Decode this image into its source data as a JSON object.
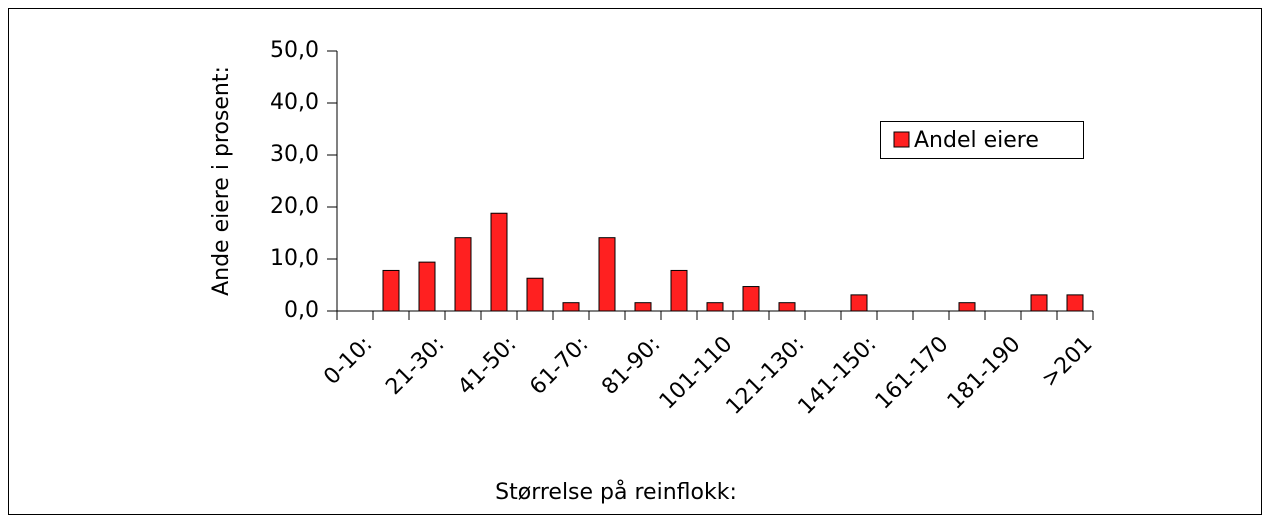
{
  "chart_data": {
    "type": "bar",
    "xlabel": "Størrelse på reinflokk:",
    "ylabel": "Ande eiere i prosent:",
    "categories": [
      "0-10:",
      null,
      "21-30:",
      null,
      "41-50:",
      null,
      "61-70:",
      null,
      "81-90:",
      null,
      "101-110",
      null,
      "121-130:",
      null,
      "141-150:",
      null,
      "161-170",
      null,
      "181-190",
      null,
      ">201"
    ],
    "series": [
      {
        "name": "Andel eiere",
        "color": "#ff2020",
        "values": [
          0,
          7.8,
          9.4,
          14.1,
          18.8,
          6.3,
          1.6,
          14.1,
          1.6,
          7.8,
          1.6,
          4.7,
          1.6,
          0,
          3.1,
          0,
          0,
          1.6,
          0,
          3.1,
          3.1
        ]
      }
    ],
    "ylim": [
      0,
      50
    ],
    "yticks": [
      {
        "value": 0,
        "label": "0,0"
      },
      {
        "value": 10,
        "label": "10,0"
      },
      {
        "value": 20,
        "label": "20,0"
      },
      {
        "value": 30,
        "label": "30,0"
      },
      {
        "value": 40,
        "label": "40,0"
      },
      {
        "value": 50,
        "label": "50,0"
      }
    ],
    "legend": "upper right"
  }
}
